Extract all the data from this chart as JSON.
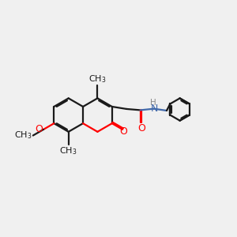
{
  "bg_color": "#f0f0f0",
  "bond_color": "#1a1a1a",
  "oxygen_color": "#ff0000",
  "nitrogen_color": "#4169aa",
  "line_width": 1.6,
  "font_size": 8.5,
  "figsize": [
    3.0,
    3.0
  ],
  "dpi": 100,
  "xlim": [
    0,
    10
  ],
  "ylim": [
    0,
    10
  ]
}
